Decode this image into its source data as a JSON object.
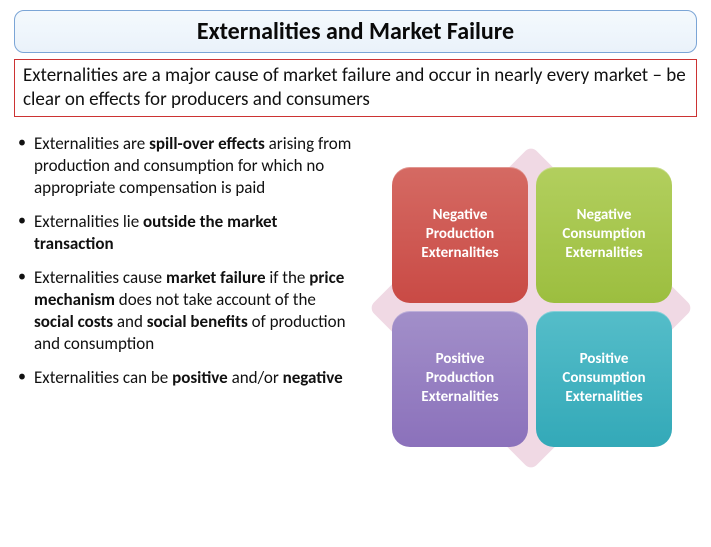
{
  "title": "Externalities and Market Failure",
  "subtitle": "Externalities are a major cause of market failure and occur in nearly every market – be clear on effects for producers and consumers",
  "bullets": [
    {
      "pre": "Externalities are ",
      "b1": "spill-over effects",
      "post": " arising from production and consumption for which no appropriate compensation is paid"
    },
    {
      "pre": "Externalities lie ",
      "b1": "outside the market transaction",
      "post": ""
    },
    {
      "pre": "Externalities cause ",
      "b1": "market failure",
      "mid1": " if the ",
      "b2": "price mechanism",
      "mid2": " does not take account of the ",
      "b3": "social costs",
      "mid3": " and ",
      "b4": "social benefits",
      "post": " of production and consumption"
    },
    {
      "pre": "Externalities can be ",
      "b1": "positive",
      "mid1": " and/or ",
      "b2": "negative",
      "post": ""
    }
  ],
  "diagram": {
    "diamond_color": "#f0d9e4",
    "tiles": [
      {
        "label": "Negative Production Externalities",
        "bg": "#c94a45",
        "grad_top": "#d56a63"
      },
      {
        "label": "Negative Consumption Externalities",
        "bg": "#9cbe3f",
        "grad_top": "#b2cf5e"
      },
      {
        "label": "Positive Production Externalities",
        "bg": "#8b71bb",
        "grad_top": "#a28fc9"
      },
      {
        "label": "Positive Consumption Externalities",
        "bg": "#33a9b8",
        "grad_top": "#55bdc9"
      }
    ]
  },
  "style": {
    "title_border": "#7ba5d6",
    "subtitle_border": "#cc3333"
  }
}
